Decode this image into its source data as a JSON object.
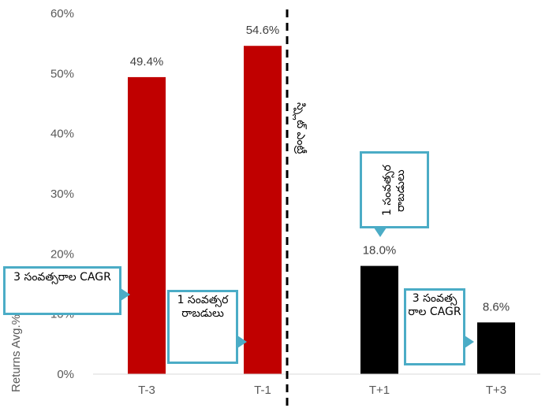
{
  "chart_data": {
    "type": "bar",
    "categories": [
      "T-3",
      "T-1",
      "T+1",
      "T+3"
    ],
    "values": [
      49.4,
      54.6,
      18.0,
      8.6
    ],
    "value_labels": [
      "49.4%",
      "54.6%",
      "18.0%",
      "8.6%"
    ],
    "bar_colors": [
      "#c00000",
      "#c00000",
      "#000000",
      "#000000"
    ],
    "ylim": [
      0,
      60
    ],
    "yticks": [
      "0%",
      "10%",
      "20%",
      "30%",
      "40%",
      "50%",
      "60%"
    ],
    "ylabel": "Returns Avg.%",
    "grid": false,
    "legend": "none",
    "divider_label": "స్ప్లిట్ ఎంట్రీ",
    "callouts": {
      "t3_left": "3 సంవత్సరాల CAGR",
      "t1_left": "1 సంవత్సర రాబడులు",
      "t1_future": "1 సంవత్సర రాబడులు",
      "t3_future": "3 సంవత్సరాల CAGR"
    },
    "accent_color": "#4bacc6"
  }
}
